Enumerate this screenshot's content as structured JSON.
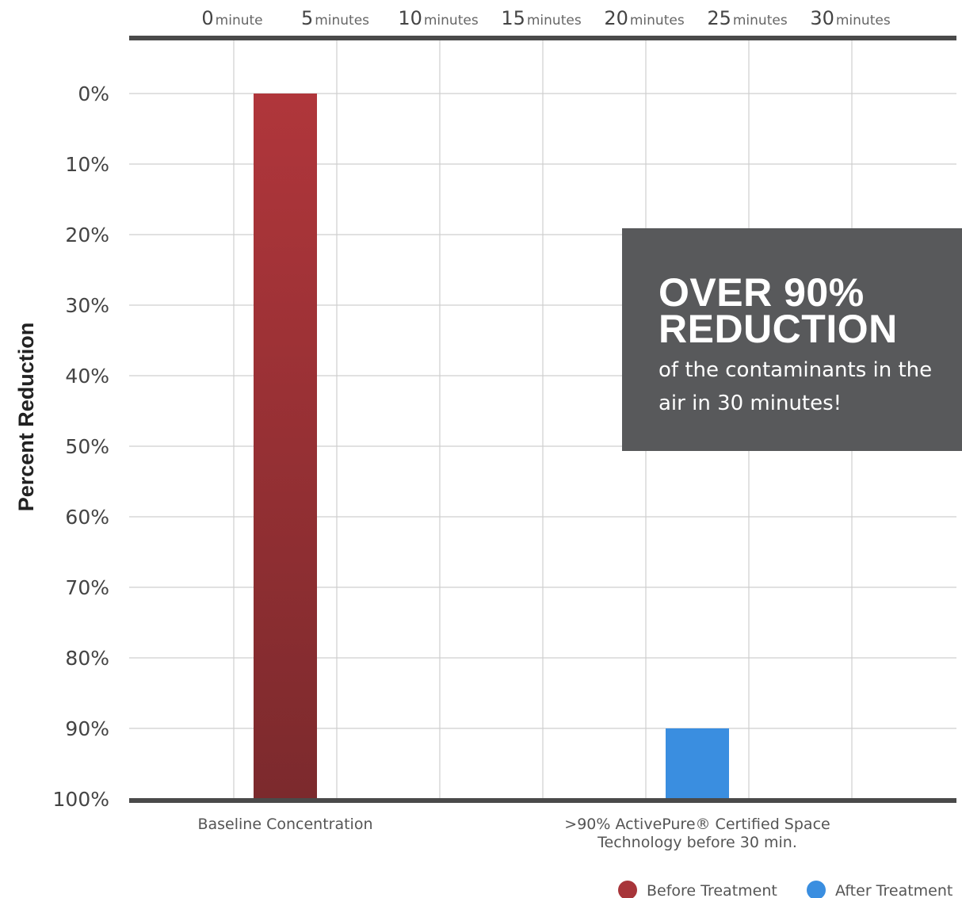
{
  "chart_data": {
    "type": "bar",
    "title": "",
    "top_axis_ticks": [
      {
        "num": "0",
        "unit": "minute"
      },
      {
        "num": "5",
        "unit": "minutes"
      },
      {
        "num": "10",
        "unit": "minutes"
      },
      {
        "num": "15",
        "unit": "minutes"
      },
      {
        "num": "20",
        "unit": "minutes"
      },
      {
        "num": "25",
        "unit": "minutes"
      },
      {
        "num": "30",
        "unit": "minutes"
      }
    ],
    "ylabel": "Percent Reduction",
    "y_ticks": [
      "0%",
      "10%",
      "20%",
      "30%",
      "40%",
      "50%",
      "60%",
      "70%",
      "80%",
      "90%",
      "100%"
    ],
    "ylim": [
      0,
      100
    ],
    "y_inverted": true,
    "grid": true,
    "categories": [
      {
        "label_lines": [
          "Baseline Concentration"
        ]
      },
      {
        "label_lines": [
          ">90% ActivePure® Certified Space",
          "Technology before 30 min."
        ]
      }
    ],
    "bars": [
      {
        "category_index": 0,
        "from": 0,
        "to": 100,
        "series": "Before Treatment",
        "color": "#a8353a",
        "color_end": "#7e2a2c"
      },
      {
        "category_index": 1,
        "from": 90,
        "to": 100,
        "series": "After Treatment",
        "color": "#3a8ee0",
        "color_end": "#3a8ee0"
      }
    ],
    "legend": {
      "position": "bottom-right",
      "items": [
        {
          "label": "Before Treatment",
          "color": "#a8353a"
        },
        {
          "label": "After Treatment",
          "color": "#3a8ee0"
        }
      ]
    }
  },
  "callout": {
    "headline_line1": "OVER 90%",
    "headline_line2": "REDUCTION",
    "subtext": "of the contaminants in the air in 30 minutes!",
    "background": "#58595b"
  }
}
